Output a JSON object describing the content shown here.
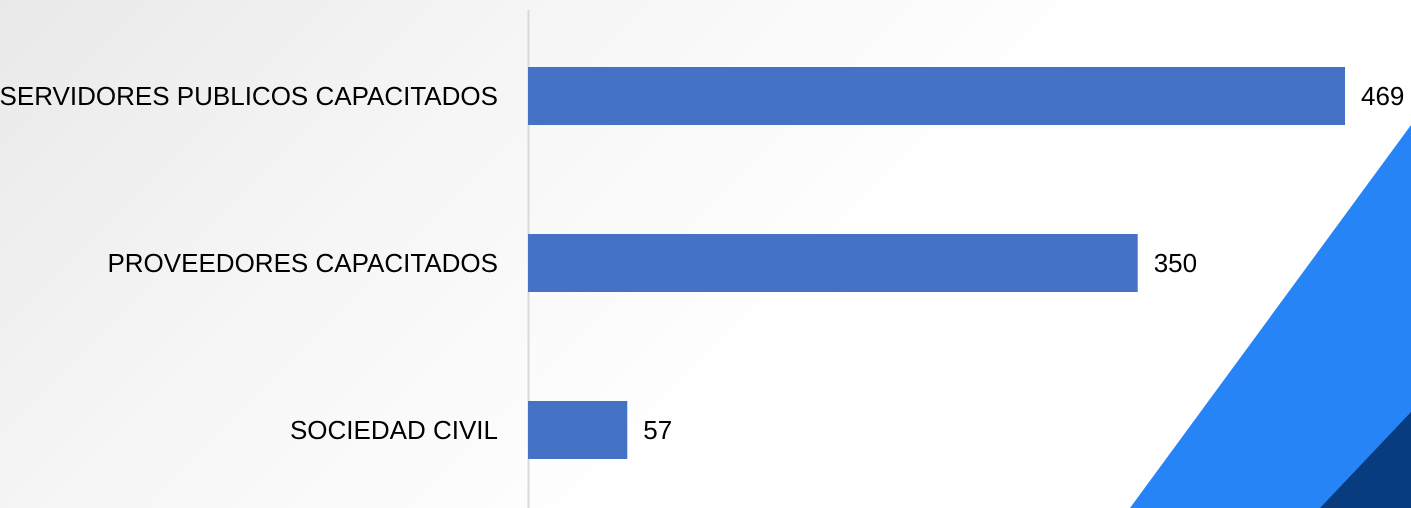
{
  "colors": {
    "bar": "#4472C4",
    "axis_line": "#D9D9D9",
    "text": "#000000",
    "accent_light": "#2684F6",
    "accent_dark": "#083C7E"
  },
  "chart_data": {
    "type": "bar",
    "orientation": "horizontal",
    "categories": [
      "SERVIDORES PUBLICOS CAPACITADOS",
      "PROVEEDORES CAPACITADOS",
      "SOCIEDAD CIVIL"
    ],
    "values": [
      469,
      350,
      57
    ],
    "data_labels": [
      "469",
      "350",
      "57"
    ],
    "xlim": [
      0,
      469
    ],
    "grid": false,
    "legend": "none"
  }
}
